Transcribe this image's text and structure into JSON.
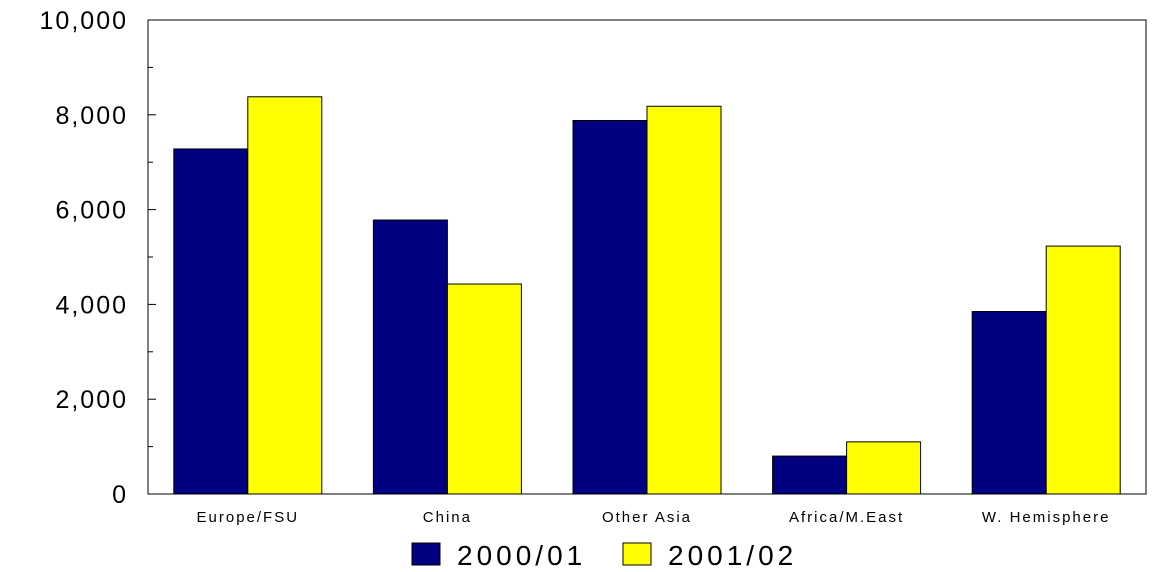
{
  "chart_data": {
    "type": "bar",
    "categories": [
      "Europe/FSU",
      "China",
      "Other Asia",
      "Africa/M.East",
      "W. Hemisphere"
    ],
    "series": [
      {
        "name": "2000/01",
        "color": "#000080",
        "values": [
          7280,
          5780,
          7880,
          800,
          3850
        ]
      },
      {
        "name": "2001/02",
        "color": "#ffff00",
        "values": [
          8380,
          4430,
          8180,
          1100,
          5230
        ]
      }
    ],
    "ylim": [
      0,
      10000
    ],
    "yticks": [
      0,
      2000,
      4000,
      6000,
      8000,
      10000
    ],
    "ytick_labels": [
      "0",
      "2,000",
      "4,000",
      "6,000",
      "8,000",
      "10,000"
    ],
    "title": "",
    "xlabel": "",
    "ylabel": "",
    "grid": false,
    "legend_position": "bottom-center"
  }
}
